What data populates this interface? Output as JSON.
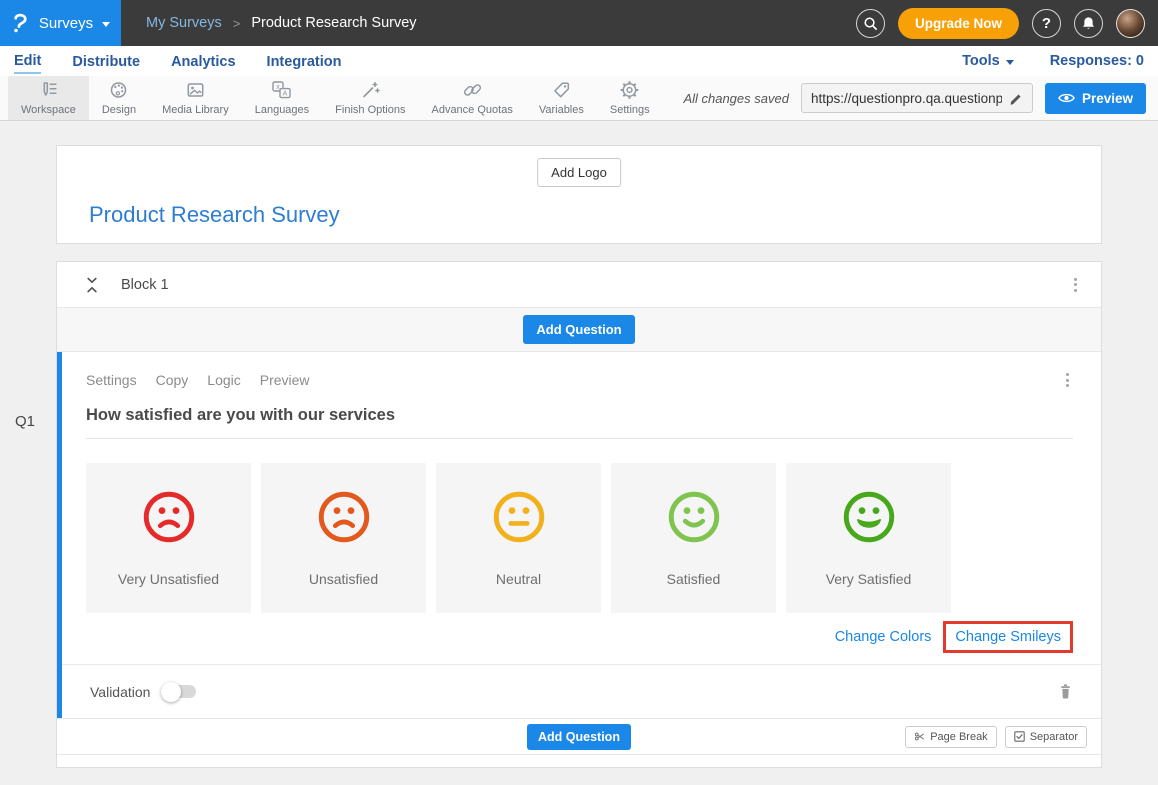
{
  "topbar": {
    "brand": "Surveys",
    "breadcrumb": {
      "parent": "My Surveys",
      "separator": ">",
      "current": "Product Research Survey"
    },
    "upgrade_label": "Upgrade Now",
    "help_label": "?"
  },
  "nav": {
    "tabs": [
      {
        "label": "Edit"
      },
      {
        "label": "Distribute"
      },
      {
        "label": "Analytics"
      },
      {
        "label": "Integration"
      }
    ],
    "tools_label": "Tools",
    "responses_label": "Responses: 0"
  },
  "toolbar": {
    "items": [
      {
        "label": "Workspace",
        "icon": "workspace-icon",
        "active": true
      },
      {
        "label": "Design",
        "icon": "palette-icon",
        "active": false
      },
      {
        "label": "Media Library",
        "icon": "image-icon",
        "active": false
      },
      {
        "label": "Languages",
        "icon": "translate-icon",
        "active": false
      },
      {
        "label": "Finish Options",
        "icon": "magic-wand-icon",
        "active": false
      },
      {
        "label": "Advance Quotas",
        "icon": "chain-links-icon",
        "active": false
      },
      {
        "label": "Variables",
        "icon": "tag-icon",
        "active": false
      },
      {
        "label": "Settings",
        "icon": "gear-icon",
        "active": false
      }
    ],
    "save_status": "All changes saved",
    "survey_url": "https://questionpro.qa.questionp",
    "preview_label": "Preview"
  },
  "survey_header": {
    "add_logo_label": "Add Logo",
    "title": "Product Research Survey"
  },
  "block": {
    "title": "Block 1",
    "add_question_label": "Add Question",
    "question": {
      "id": "Q1",
      "actions": [
        "Settings",
        "Copy",
        "Logic",
        "Preview"
      ],
      "title": "How satisfied are you with our services",
      "options": [
        {
          "label": "Very Unsatisfied",
          "color": "#e52a2a",
          "mouth": "frown"
        },
        {
          "label": "Unsatisfied",
          "color": "#e3591d",
          "mouth": "frown"
        },
        {
          "label": "Neutral",
          "color": "#f2b01c",
          "mouth": "neutral"
        },
        {
          "label": "Satisfied",
          "color": "#7ec44f",
          "mouth": "smile"
        },
        {
          "label": "Very Satisfied",
          "color": "#47a81c",
          "mouth": "bigsmile"
        }
      ],
      "change_colors_label": "Change Colors",
      "change_smileys_label": "Change Smileys",
      "validation_label": "Validation"
    },
    "footer": {
      "add_question_label": "Add Question",
      "page_break_label": "Page Break",
      "separator_label": "Separator"
    }
  },
  "colors": {
    "accent_blue": "#1b87e6",
    "upgrade_orange": "#f7a008",
    "highlight_red": "#e23b2e",
    "topbar_dark": "#3b3b3b"
  }
}
